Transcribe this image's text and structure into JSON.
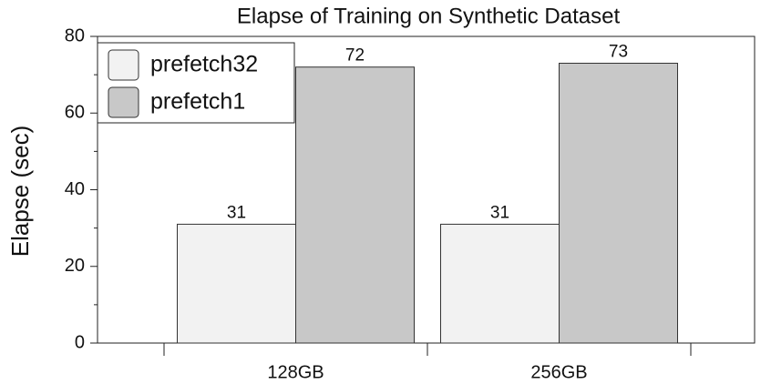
{
  "chart_data": {
    "type": "bar",
    "title": "Elapse of Training on Synthetic Dataset",
    "y_label": "Elapse (sec)",
    "categories": [
      "128GB",
      "256GB"
    ],
    "series": [
      {
        "name": "prefetch32",
        "color": "#f2f2f2",
        "values": [
          31,
          31
        ]
      },
      {
        "name": "prefetch1",
        "color": "#c8c8c8",
        "values": [
          72,
          73
        ]
      }
    ],
    "ylim": [
      0,
      80
    ],
    "yticks": [
      0,
      20,
      40,
      60,
      80
    ],
    "yticks_minor": [
      10,
      30,
      50,
      70
    ],
    "legend": "upper-left"
  }
}
